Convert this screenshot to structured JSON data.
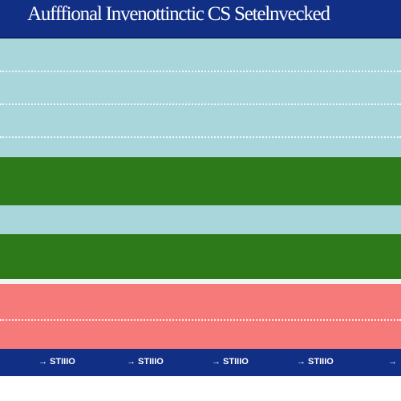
{
  "header": {
    "title": "Aufffional Invenottinctic CS Setelnvecked"
  },
  "colors": {
    "navy": "#122f86",
    "light_blue": "#a9d6db",
    "green": "#2d7a1a",
    "coral": "#f77a7a",
    "white": "#ffffff"
  },
  "footer": {
    "labels": [
      "→ STIIIO",
      "→ STIIIO",
      "→ STIIIO",
      "→ STIIIO",
      "→"
    ]
  }
}
